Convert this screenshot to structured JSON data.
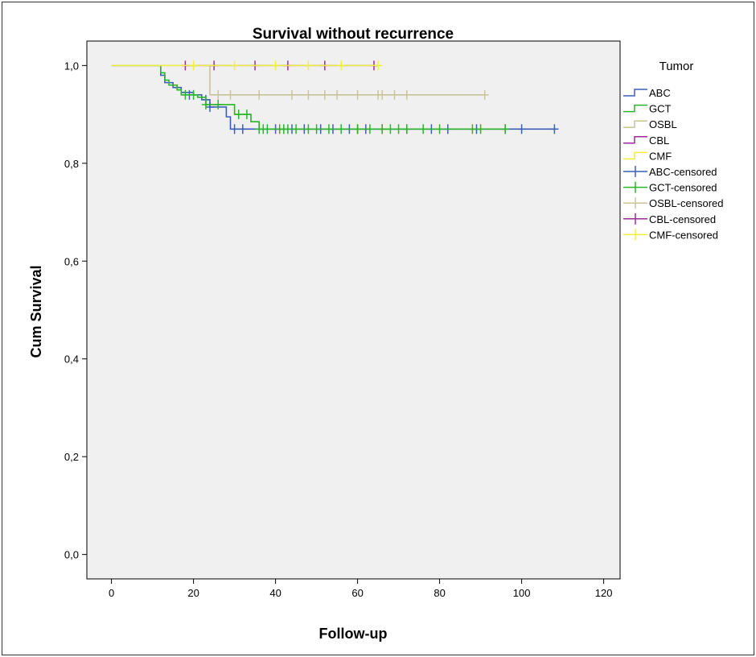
{
  "chart_data": {
    "type": "line",
    "subtype": "kaplan-meier step",
    "title": "Survival without recurrence",
    "xlabel": "Follow-up",
    "ylabel": "Cum Survival",
    "xlim": [
      -6,
      124
    ],
    "ylim": [
      -0.05,
      1.05
    ],
    "xticks": [
      0,
      20,
      40,
      60,
      80,
      100,
      120
    ],
    "xtick_labels": [
      "0",
      "20",
      "40",
      "60",
      "80",
      "100",
      "120"
    ],
    "yticks": [
      0.0,
      0.2,
      0.4,
      0.6,
      0.8,
      1.0
    ],
    "ytick_labels": [
      "0,0",
      "0,2",
      "0,4",
      "0,6",
      "0,8",
      "1,0"
    ],
    "grid": false,
    "plot_background": "#f0f0f0",
    "legend_title": "Tumor",
    "legend_position": "right",
    "series": [
      {
        "name": "ABC",
        "censored_label": "ABC-censored",
        "color": "#3b5fb8",
        "steps": [
          [
            0,
            1.0
          ],
          [
            12,
            0.98
          ],
          [
            13,
            0.965
          ],
          [
            15,
            0.955
          ],
          [
            17,
            0.945
          ],
          [
            20,
            0.94
          ],
          [
            22,
            0.93
          ],
          [
            24,
            0.915
          ],
          [
            26,
            0.915
          ],
          [
            28,
            0.895
          ],
          [
            29,
            0.87
          ],
          [
            108,
            0.87
          ]
        ],
        "censored": [
          [
            19,
            0.94
          ],
          [
            23,
            0.93
          ],
          [
            24,
            0.915
          ],
          [
            30,
            0.87
          ],
          [
            32,
            0.87
          ],
          [
            40,
            0.87
          ],
          [
            44,
            0.87
          ],
          [
            47,
            0.87
          ],
          [
            51,
            0.87
          ],
          [
            54,
            0.87
          ],
          [
            58,
            0.87
          ],
          [
            60,
            0.87
          ],
          [
            62,
            0.87
          ],
          [
            66,
            0.87
          ],
          [
            72,
            0.87
          ],
          [
            78,
            0.87
          ],
          [
            82,
            0.87
          ],
          [
            89,
            0.87
          ],
          [
            96,
            0.87
          ],
          [
            100,
            0.87
          ],
          [
            108,
            0.87
          ]
        ]
      },
      {
        "name": "GCT",
        "censored_label": "GCT-censored",
        "color": "#2bb52b",
        "steps": [
          [
            0,
            1.0
          ],
          [
            12,
            0.985
          ],
          [
            13,
            0.97
          ],
          [
            14,
            0.96
          ],
          [
            16,
            0.95
          ],
          [
            17,
            0.94
          ],
          [
            21,
            0.935
          ],
          [
            23,
            0.92
          ],
          [
            30,
            0.9
          ],
          [
            34,
            0.885
          ],
          [
            36,
            0.87
          ],
          [
            96,
            0.87
          ]
        ],
        "censored": [
          [
            18,
            0.94
          ],
          [
            20,
            0.94
          ],
          [
            23,
            0.92
          ],
          [
            26,
            0.92
          ],
          [
            31,
            0.9
          ],
          [
            33,
            0.9
          ],
          [
            36,
            0.87
          ],
          [
            37,
            0.87
          ],
          [
            38,
            0.87
          ],
          [
            41,
            0.87
          ],
          [
            42,
            0.87
          ],
          [
            43,
            0.87
          ],
          [
            45,
            0.87
          ],
          [
            48,
            0.87
          ],
          [
            50,
            0.87
          ],
          [
            53,
            0.87
          ],
          [
            56,
            0.87
          ],
          [
            60,
            0.87
          ],
          [
            63,
            0.87
          ],
          [
            66,
            0.87
          ],
          [
            68,
            0.87
          ],
          [
            70,
            0.87
          ],
          [
            72,
            0.87
          ],
          [
            76,
            0.87
          ],
          [
            80,
            0.87
          ],
          [
            88,
            0.87
          ],
          [
            90,
            0.87
          ],
          [
            96,
            0.87
          ]
        ]
      },
      {
        "name": "OSBL",
        "censored_label": "OSBL-censored",
        "color": "#c8c49a",
        "steps": [
          [
            0,
            1.0
          ],
          [
            24,
            1.0
          ],
          [
            24,
            0.94
          ],
          [
            91,
            0.94
          ]
        ],
        "censored": [
          [
            26,
            0.94
          ],
          [
            29,
            0.94
          ],
          [
            36,
            0.94
          ],
          [
            44,
            0.94
          ],
          [
            48,
            0.94
          ],
          [
            52,
            0.94
          ],
          [
            55,
            0.94
          ],
          [
            60,
            0.94
          ],
          [
            65,
            0.94
          ],
          [
            66,
            0.94
          ],
          [
            69,
            0.94
          ],
          [
            72,
            0.94
          ],
          [
            91,
            0.94
          ]
        ]
      },
      {
        "name": "CBL",
        "censored_label": "CBL-censored",
        "color": "#9a2d96",
        "steps": [
          [
            18,
            1.0
          ],
          [
            65,
            1.0
          ]
        ],
        "censored": [
          [
            18,
            1.0
          ],
          [
            25,
            1.0
          ],
          [
            35,
            1.0
          ],
          [
            43,
            1.0
          ],
          [
            52,
            1.0
          ],
          [
            64,
            1.0
          ]
        ]
      },
      {
        "name": "CMF",
        "censored_label": "CMF-censored",
        "color": "#f0f03c",
        "steps": [
          [
            0,
            1.0
          ],
          [
            66,
            1.0
          ]
        ],
        "censored": [
          [
            20,
            1.0
          ],
          [
            30,
            1.0
          ],
          [
            40,
            1.0
          ],
          [
            48,
            1.0
          ],
          [
            56,
            1.0
          ],
          [
            65,
            1.0
          ]
        ]
      }
    ]
  }
}
